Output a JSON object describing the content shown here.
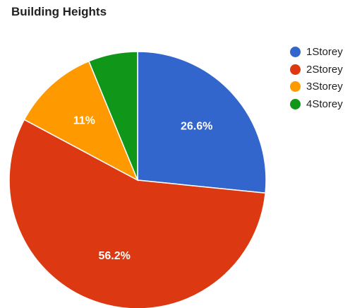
{
  "chart_data": {
    "type": "pie",
    "title": "Building Heights",
    "slices": [
      {
        "label": "1Storey",
        "value": 26.6,
        "display": "26.6%",
        "color": "#3366cc"
      },
      {
        "label": "2Storey",
        "value": 56.2,
        "display": "56.2%",
        "color": "#dc3912"
      },
      {
        "label": "3Storey",
        "value": 11.0,
        "display": "11%",
        "color": "#ff9900"
      },
      {
        "label": "4Storey",
        "value": 6.2,
        "display": "",
        "color": "#109618"
      }
    ],
    "start_angle_deg": 0,
    "direction": "clockwise",
    "legend_position": "right"
  }
}
